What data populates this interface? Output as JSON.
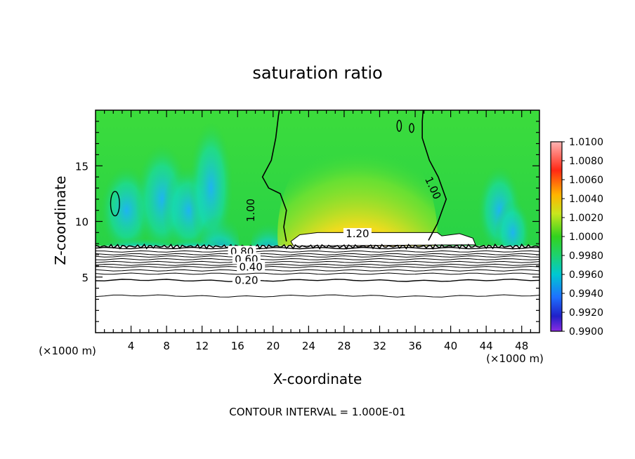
{
  "chart_data": {
    "type": "heatmap",
    "title": "saturation ratio",
    "xlabel": "X-coordinate",
    "ylabel": "Z-coordinate",
    "x_unit_left": "(×1000 m)",
    "x_unit_right": "(×1000 m)",
    "xlim": [
      0,
      50
    ],
    "ylim": [
      0,
      20
    ],
    "x_ticks": [
      4,
      8,
      12,
      16,
      20,
      24,
      28,
      32,
      36,
      40,
      44,
      48
    ],
    "y_ticks": [
      5,
      10,
      15
    ],
    "colorbar": {
      "min": 0.99,
      "max": 1.01,
      "labels": [
        "1.0100",
        "1.0080",
        "1.0060",
        "1.0040",
        "1.0020",
        "1.0000",
        "0.9980",
        "0.9960",
        "0.9940",
        "0.9920",
        "0.9900"
      ],
      "colors": [
        "#8a2be2",
        "#2020c8",
        "#1e50ff",
        "#1e90ff",
        "#00c8c8",
        "#00e6b4",
        "#28d228",
        "#b4e61e",
        "#f0e600",
        "#ff9600",
        "#ff3c1e",
        "#ff6464",
        "#ffb4b4"
      ]
    },
    "contour_labels": [
      {
        "text": "1.00",
        "x": 17.5,
        "z": 11.0,
        "rotate": -90
      },
      {
        "text": "1.00",
        "x": 38.0,
        "z": 13.0,
        "rotate": 65
      },
      {
        "text": "1.20",
        "x": 29.5,
        "z": 8.9,
        "rotate": 0
      },
      {
        "text": "0.80",
        "x": 16.5,
        "z": 7.3,
        "rotate": 0
      },
      {
        "text": "0.60",
        "x": 17.0,
        "z": 6.6,
        "rotate": 0
      },
      {
        "text": "0.40",
        "x": 17.5,
        "z": 5.9,
        "rotate": 0
      },
      {
        "text": "0.20",
        "x": 17.0,
        "z": 4.7,
        "rotate": 0
      }
    ],
    "footer": "CONTOUR INTERVAL = 1.000E-01"
  }
}
